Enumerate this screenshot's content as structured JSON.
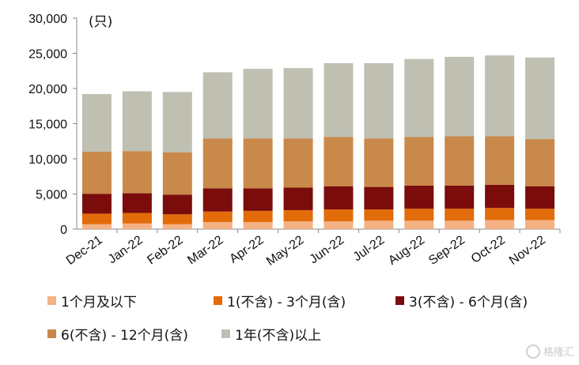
{
  "chart_data": {
    "type": "bar",
    "stacked": true,
    "unit_label": "(只)",
    "categories": [
      "Dec-21",
      "Jan-22",
      "Feb-22",
      "Mar-22",
      "Apr-22",
      "May-22",
      "Jun-22",
      "Jul-22",
      "Aug-22",
      "Sep-22",
      "Oct-22",
      "Nov-22"
    ],
    "ylim": [
      0,
      30000
    ],
    "yticks": [
      0,
      5000,
      10000,
      15000,
      20000,
      25000,
      30000
    ],
    "ytick_labels": [
      "0",
      "5,000",
      "10,000",
      "15,000",
      "20,000",
      "25,000",
      "30,000"
    ],
    "grid": false,
    "legend_position": "bottom",
    "series": [
      {
        "name": "1个月及以下",
        "color": "#f4b183",
        "values": [
          700,
          800,
          700,
          1000,
          1000,
          1100,
          1100,
          1200,
          1200,
          1200,
          1300,
          1300
        ]
      },
      {
        "name": "1(不含) - 3个月(含)",
        "color": "#e26b0a",
        "values": [
          1500,
          1500,
          1400,
          1500,
          1600,
          1600,
          1700,
          1600,
          1700,
          1700,
          1700,
          1600
        ]
      },
      {
        "name": "3(不含) - 6个月(含)",
        "color": "#7b0c0c",
        "values": [
          2800,
          2800,
          2800,
          3300,
          3200,
          3200,
          3300,
          3200,
          3300,
          3300,
          3300,
          3200
        ]
      },
      {
        "name": "6(不含) - 12个月(含)",
        "color": "#c8894a",
        "values": [
          6000,
          6000,
          6000,
          7100,
          7100,
          7000,
          7000,
          6900,
          6900,
          7000,
          6900,
          6700
        ]
      },
      {
        "name": "1年(不含)以上",
        "color": "#bfbfb2",
        "values": [
          8200,
          8500,
          8600,
          9400,
          9900,
          10000,
          10500,
          10700,
          11100,
          11300,
          11500,
          11600
        ]
      }
    ]
  },
  "watermark": {
    "text": "格隆汇"
  }
}
